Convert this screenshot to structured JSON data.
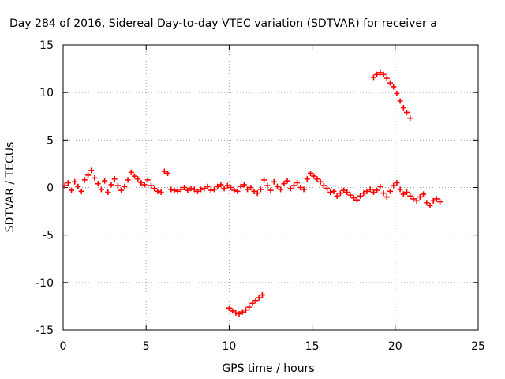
{
  "chart_data": {
    "type": "scatter",
    "title": "Day 284 of 2016, Sidereal Day-to-day VTEC variation (SDTVAR) for receiver a",
    "xlabel": "GPS time / hours",
    "ylabel": "SDTVAR / TECUs",
    "xlim": [
      0,
      25
    ],
    "ylim": [
      -15,
      15
    ],
    "xticks": [
      "0",
      "5",
      "10",
      "15",
      "20",
      "25"
    ],
    "yticks": [
      "-15",
      "-10",
      "-5",
      "0",
      "5",
      "10",
      "15"
    ],
    "grid": true,
    "legend": "none",
    "marker": "plus",
    "color": "#ff0000",
    "series": [
      {
        "x": [
          0.1,
          0.3,
          0.5,
          0.7,
          0.9,
          1.1,
          1.3,
          1.5,
          1.7,
          1.9,
          2.1,
          2.3,
          2.5,
          2.7,
          2.9,
          3.1,
          3.3,
          3.5,
          3.7,
          3.9,
          4.1,
          4.3,
          4.5,
          4.7,
          4.9,
          5.1,
          5.3,
          5.5,
          5.7,
          5.9,
          6.1,
          6.3,
          6.5,
          6.7,
          6.9,
          7.1,
          7.3,
          7.5,
          7.7,
          7.9,
          8.1,
          8.3,
          8.5,
          8.7,
          8.9,
          9.1,
          9.3,
          9.5,
          9.7,
          9.9,
          10.1,
          10.3,
          10.5,
          10.7,
          10.9,
          11.1,
          11.3,
          11.5,
          11.7,
          11.9
        ],
        "y": [
          0.2,
          0.5,
          -0.3,
          0.6,
          0.1,
          -0.4,
          0.8,
          1.3,
          1.8,
          1.0,
          0.4,
          -0.2,
          0.7,
          -0.5,
          0.3,
          0.9,
          0.2,
          -0.3,
          0.1,
          0.8,
          1.6,
          1.2,
          0.9,
          0.5,
          0.3,
          0.8,
          0.2,
          -0.1,
          -0.4,
          -0.5,
          1.7,
          1.5,
          -0.2,
          -0.3,
          -0.4,
          -0.2,
          0.0,
          -0.3,
          -0.1,
          -0.2,
          -0.4,
          -0.2,
          -0.1,
          0.1,
          -0.3,
          -0.2,
          0.1,
          0.3,
          -0.1,
          0.2,
          0.0,
          -0.3,
          -0.4,
          0.1,
          0.3,
          -0.2,
          0.0,
          -0.4,
          -0.6,
          -0.2
        ]
      },
      {
        "x": [
          12.1,
          12.3,
          12.5,
          12.7,
          12.9,
          13.1,
          13.3,
          13.5,
          13.7,
          13.9,
          14.1,
          14.3,
          14.5,
          14.7,
          14.9,
          15.1,
          15.3,
          15.5,
          15.7,
          15.9,
          16.1,
          16.3,
          16.5,
          16.7,
          16.9,
          17.1,
          17.3,
          17.5,
          17.7,
          17.9,
          18.1,
          18.3,
          18.5,
          18.7,
          18.9,
          19.1,
          19.3,
          19.5,
          19.7,
          19.9,
          20.1,
          20.3,
          20.5,
          20.7,
          20.9,
          21.1,
          21.3,
          21.5,
          21.7,
          21.9,
          22.1,
          22.3,
          22.5,
          22.7
        ],
        "y": [
          0.8,
          0.2,
          -0.3,
          0.6,
          0.1,
          -0.2,
          0.4,
          0.7,
          -0.1,
          0.2,
          0.5,
          0.0,
          -0.2,
          0.9,
          1.5,
          1.2,
          0.9,
          0.6,
          0.2,
          -0.1,
          -0.5,
          -0.4,
          -0.9,
          -0.6,
          -0.3,
          -0.5,
          -0.8,
          -1.1,
          -1.3,
          -0.9,
          -0.6,
          -0.4,
          -0.2,
          -0.5,
          -0.3,
          0.1,
          -0.6,
          -1.0,
          -0.4,
          0.2,
          0.5,
          -0.2,
          -0.7,
          -0.5,
          -0.9,
          -1.2,
          -1.4,
          -1.0,
          -0.7,
          -1.6,
          -1.9,
          -1.4,
          -1.2,
          -1.5
        ]
      },
      {
        "x": [
          18.7,
          18.9,
          19.1,
          19.3,
          19.5,
          19.7,
          19.9,
          20.1,
          20.3,
          20.5,
          20.7,
          20.9
        ],
        "y": [
          11.6,
          11.9,
          12.1,
          11.9,
          11.5,
          11.0,
          10.6,
          9.9,
          9.1,
          8.4,
          7.9,
          7.3
        ]
      },
      {
        "x": [
          10.0,
          10.2,
          10.4,
          10.6,
          10.8,
          11.0,
          11.2,
          11.4,
          11.6,
          11.8,
          12.0
        ],
        "y": [
          -12.7,
          -13.0,
          -13.2,
          -13.3,
          -13.1,
          -12.9,
          -12.6,
          -12.2,
          -11.9,
          -11.6,
          -11.3
        ]
      }
    ]
  }
}
